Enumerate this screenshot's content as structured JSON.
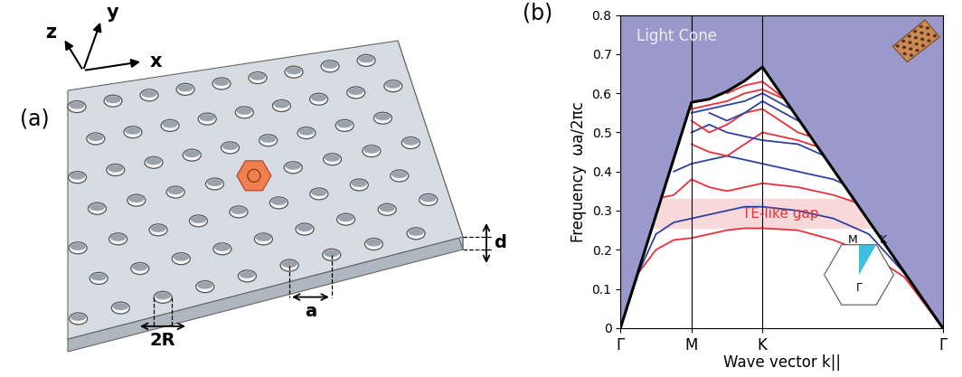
{
  "panel_a": {
    "label": "(a)",
    "axis_labels": {
      "x": "x",
      "y": "y",
      "z": "z"
    },
    "dimensions": {
      "hole_diameter": "2R",
      "lattice_constant": "a",
      "thickness": "d"
    }
  },
  "chart_data": {
    "type": "line",
    "label": "(b)",
    "x_label": "Wave vector k||",
    "y_label": "Frequency  ωa/2πc",
    "x": [
      0,
      0.25,
      0.5,
      0.75,
      1,
      1.25,
      1.5,
      1.75,
      2,
      2.5,
      3,
      3.5,
      4,
      4.54
    ],
    "xlim": [
      0,
      4.54
    ],
    "xticks": [
      {
        "value": 0,
        "label": "Γ"
      },
      {
        "value": 1,
        "label": "M"
      },
      {
        "value": 2,
        "label": "K"
      },
      {
        "value": 4.54,
        "label": "Γ"
      }
    ],
    "ylim": [
      0,
      0.8
    ],
    "yticks": [
      0,
      0.1,
      0.2,
      0.3,
      0.4,
      0.5,
      0.6,
      0.7,
      0.8
    ],
    "grid": "x",
    "light_cone": {
      "label": "Light Cone",
      "color": "#9999cc",
      "x": [
        0,
        1,
        1.25,
        1.5,
        1.75,
        2,
        4.54
      ],
      "values": [
        0,
        0.577,
        0.585,
        0.605,
        0.632,
        0.667,
        0
      ]
    },
    "gap": {
      "label": "TE-like gap",
      "range": [
        0.255,
        0.33
      ],
      "color": "#f7d9d9"
    },
    "inset_labels": [
      "M",
      "K",
      "Γ"
    ],
    "series": [
      {
        "color": "#e8303a",
        "values": [
          0,
          0.14,
          0.2,
          0.225,
          0.23,
          0.24,
          0.25,
          0.255,
          0.255,
          0.25,
          0.225,
          0.19,
          0.13,
          0
        ]
      },
      {
        "color": "#3040a0",
        "values": [
          0,
          0.14,
          0.24,
          0.27,
          0.28,
          0.29,
          0.3,
          0.31,
          0.31,
          0.3,
          0.28,
          0.24,
          0.14,
          0
        ]
      },
      {
        "color": "#e8303a",
        "values": [
          null,
          null,
          0.33,
          0.34,
          0.38,
          0.36,
          0.35,
          0.36,
          0.37,
          0.36,
          0.34,
          0.31,
          null,
          null
        ]
      },
      {
        "color": "#3040a0",
        "values": [
          null,
          null,
          null,
          0.4,
          0.42,
          0.43,
          0.44,
          0.43,
          0.42,
          0.4,
          0.38,
          0.34,
          null,
          null
        ]
      },
      {
        "color": "#e8303a",
        "values": [
          null,
          null,
          null,
          null,
          0.47,
          0.45,
          0.44,
          0.47,
          0.5,
          0.48,
          0.45,
          0.42,
          null,
          null
        ]
      },
      {
        "color": "#3040a0",
        "values": [
          null,
          null,
          null,
          null,
          0.5,
          0.52,
          0.5,
          0.49,
          0.48,
          0.47,
          0.43,
          0.4,
          null,
          null
        ]
      },
      {
        "color": "#e8303a",
        "values": [
          null,
          null,
          null,
          null,
          0.53,
          0.5,
          0.52,
          0.55,
          0.56,
          0.5,
          0.47,
          null,
          null,
          null
        ]
      },
      {
        "color": "#3040a0",
        "values": [
          null,
          null,
          null,
          null,
          0.55,
          0.56,
          0.57,
          0.58,
          0.6,
          0.55,
          0.5,
          null,
          null,
          null
        ]
      },
      {
        "color": "#e8303a",
        "values": [
          null,
          null,
          null,
          null,
          0.56,
          0.57,
          0.58,
          0.6,
          0.61,
          0.57,
          0.52,
          null,
          null,
          null
        ]
      },
      {
        "color": "#3040a0",
        "values": [
          null,
          null,
          null,
          null,
          null,
          0.55,
          0.53,
          0.55,
          0.58,
          0.53,
          0.49,
          null,
          null,
          null
        ]
      },
      {
        "color": "#e8303a",
        "values": [
          null,
          null,
          null,
          null,
          null,
          null,
          0.6,
          0.62,
          0.63,
          0.56,
          null,
          null,
          null,
          null
        ]
      }
    ]
  }
}
